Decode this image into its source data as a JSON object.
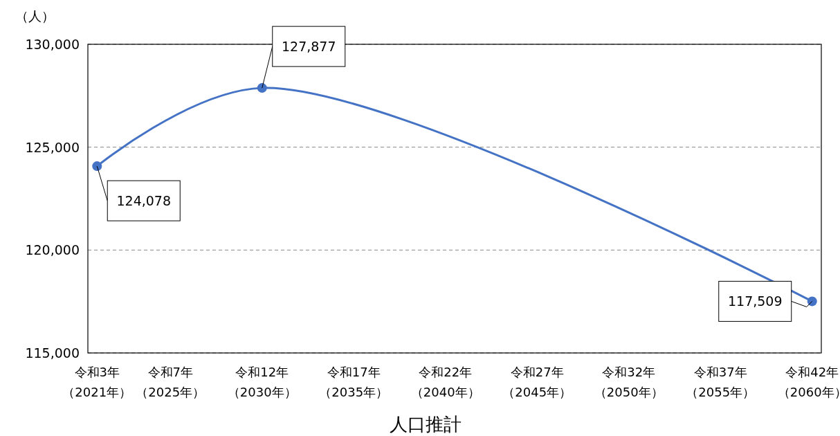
{
  "chart_data": {
    "type": "line",
    "xlabel": "人口推計",
    "ylabel": "（人）",
    "categories": [
      "令和3年（2021年）",
      null,
      null,
      null,
      "令和7年（2025年）",
      null,
      null,
      null,
      null,
      "令和12年（2030年）",
      null,
      null,
      null,
      null,
      "令和17年（2035年）",
      null,
      null,
      null,
      null,
      "令和22年（2040年）",
      null,
      null,
      null,
      null,
      "令和27年（2045年）",
      null,
      null,
      null,
      null,
      "令和32年（2050年）",
      null,
      null,
      null,
      null,
      "令和37年（2055年）",
      null,
      null,
      null,
      null,
      "令和42年（2060年）"
    ],
    "series": [
      {
        "color": "#4472c4",
        "values": [
          124078,
          null,
          null,
          null,
          null,
          null,
          null,
          null,
          null,
          127877,
          null,
          null,
          null,
          null,
          null,
          null,
          null,
          null,
          null,
          null,
          null,
          null,
          null,
          null,
          null,
          null,
          null,
          null,
          null,
          null,
          null,
          null,
          null,
          null,
          null,
          null,
          null,
          null,
          null,
          117509
        ],
        "value_labels": [
          "124,078",
          null,
          null,
          null,
          null,
          null,
          null,
          null,
          null,
          "127,877",
          null,
          null,
          null,
          null,
          null,
          null,
          null,
          null,
          null,
          null,
          null,
          null,
          null,
          null,
          null,
          null,
          null,
          null,
          null,
          null,
          null,
          null,
          null,
          null,
          null,
          null,
          null,
          null,
          null,
          "117,509"
        ]
      }
    ],
    "ylim": [
      115000,
      130000
    ],
    "yticks": [
      {
        "value": 115000,
        "label": "115,000"
      },
      {
        "value": 120000,
        "label": "120,000"
      },
      {
        "value": 125000,
        "label": "125,000"
      },
      {
        "value": 130000,
        "label": "130,000"
      }
    ],
    "grid": "y",
    "marker": "circle",
    "line_style": "solid"
  }
}
